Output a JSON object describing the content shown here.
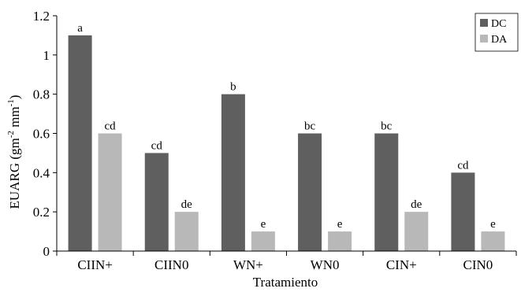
{
  "chart_data": {
    "type": "bar",
    "categories": [
      "CIIN+",
      "CIIN0",
      "WN+",
      "WN0",
      "CIN+",
      "CIN0"
    ],
    "series": [
      {
        "name": "DC",
        "values": [
          1.1,
          0.5,
          0.8,
          0.6,
          0.6,
          0.4
        ],
        "labels": [
          "a",
          "cd",
          "b",
          "bc",
          "bc",
          "cd"
        ],
        "color": "#5f5f5f"
      },
      {
        "name": "DA",
        "values": [
          0.6,
          0.2,
          0.1,
          0.1,
          0.2,
          0.1
        ],
        "labels": [
          "cd",
          "de",
          "e",
          "e",
          "de",
          "e"
        ],
        "color": "#b8b8b8"
      }
    ],
    "xlabel": "Tratamiento",
    "ylabel_parts": {
      "main": "EUARG (gm",
      "sup1": "-2",
      "mid": " mm",
      "sup2": "-1",
      "end": ")"
    },
    "ylim": [
      0,
      1.2
    ],
    "yticks": [
      0,
      0.2,
      0.4,
      0.6,
      0.8,
      1,
      1.2
    ],
    "ytick_labels": [
      "0",
      "0.2",
      "0.4",
      "0.6",
      "0.8",
      "1",
      "1.2"
    ],
    "grid": false,
    "legend_position": "top-right"
  }
}
